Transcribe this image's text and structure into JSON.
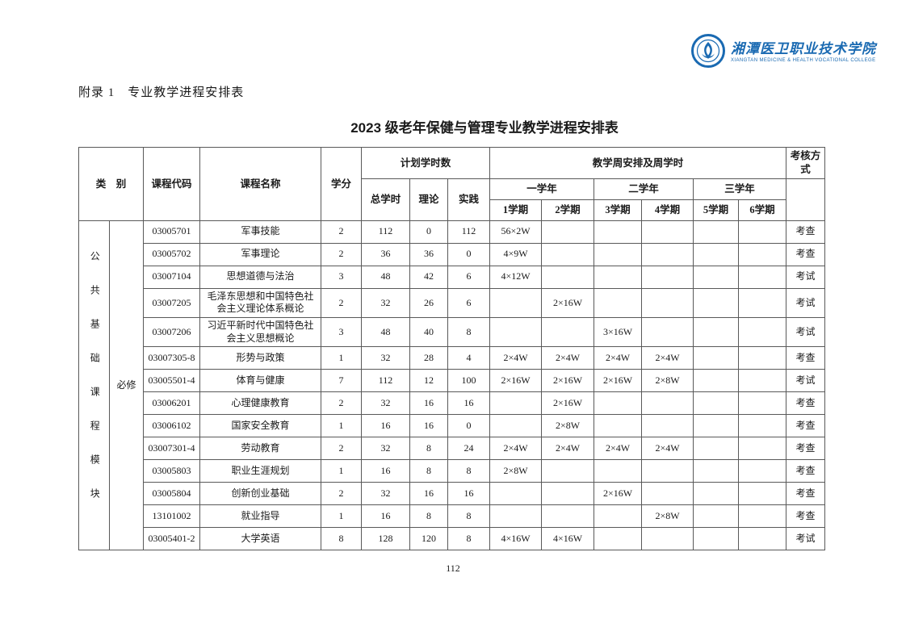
{
  "page": {
    "appendix_heading": "附录 1　专业教学进程安排表",
    "title": "2023 级老年保健与管理专业教学进程安排表",
    "page_number": "112"
  },
  "logo": {
    "college_name_cn": "湘潭医卫职业技术学院",
    "college_name_en": "XIANGTAN MEDICINE & HEALTH VOCATIONAL COLLEGE",
    "brand_color": "#1a6ab2"
  },
  "table": {
    "headers": {
      "category": "类　别",
      "course_code": "课程代码",
      "course_name": "课程名称",
      "credits": "学分",
      "planned_hours": "计划学时数",
      "total_hours": "总学时",
      "theory": "理论",
      "practice": "实践",
      "weekly_schedule": "教学周安排及周学时",
      "year1": "一学年",
      "year2": "二学年",
      "year3": "三学年",
      "semesters": [
        "1学期",
        "2学期",
        "3学期",
        "4学期",
        "5学期",
        "6学期"
      ],
      "assessment": "考核方式"
    },
    "category_group": {
      "module": "公共基础课程模块",
      "type": "必修"
    },
    "rows": [
      {
        "code": "03005701",
        "name": "军事技能",
        "credits": "2",
        "total": "112",
        "theory": "0",
        "practice": "112",
        "s1": "56×2W",
        "s2": "",
        "s3": "",
        "s4": "",
        "s5": "",
        "s6": "",
        "assess": "考查"
      },
      {
        "code": "03005702",
        "name": "军事理论",
        "credits": "2",
        "total": "36",
        "theory": "36",
        "practice": "0",
        "s1": "4×9W",
        "s2": "",
        "s3": "",
        "s4": "",
        "s5": "",
        "s6": "",
        "assess": "考查"
      },
      {
        "code": "03007104",
        "name": "思想道德与法治",
        "credits": "3",
        "total": "48",
        "theory": "42",
        "practice": "6",
        "s1": "4×12W",
        "s2": "",
        "s3": "",
        "s4": "",
        "s5": "",
        "s6": "",
        "assess": "考试"
      },
      {
        "code": "03007205",
        "name": "毛泽东思想和中国特色社会主义理论体系概论",
        "credits": "2",
        "total": "32",
        "theory": "26",
        "practice": "6",
        "s1": "",
        "s2": "2×16W",
        "s3": "",
        "s4": "",
        "s5": "",
        "s6": "",
        "assess": "考试"
      },
      {
        "code": "03007206",
        "name": "习近平新时代中国特色社会主义思想概论",
        "credits": "3",
        "total": "48",
        "theory": "40",
        "practice": "8",
        "s1": "",
        "s2": "",
        "s3": "3×16W",
        "s4": "",
        "s5": "",
        "s6": "",
        "assess": "考试"
      },
      {
        "code": "03007305-8",
        "name": "形势与政策",
        "credits": "1",
        "total": "32",
        "theory": "28",
        "practice": "4",
        "s1": "2×4W",
        "s2": "2×4W",
        "s3": "2×4W",
        "s4": "2×4W",
        "s5": "",
        "s6": "",
        "assess": "考查"
      },
      {
        "code": "03005501-4",
        "name": "体育与健康",
        "credits": "7",
        "total": "112",
        "theory": "12",
        "practice": "100",
        "s1": "2×16W",
        "s2": "2×16W",
        "s3": "2×16W",
        "s4": "2×8W",
        "s5": "",
        "s6": "",
        "assess": "考试"
      },
      {
        "code": "03006201",
        "name": "心理健康教育",
        "credits": "2",
        "total": "32",
        "theory": "16",
        "practice": "16",
        "s1": "",
        "s2": "2×16W",
        "s3": "",
        "s4": "",
        "s5": "",
        "s6": "",
        "assess": "考查"
      },
      {
        "code": "03006102",
        "name": "国家安全教育",
        "credits": "1",
        "total": "16",
        "theory": "16",
        "practice": "0",
        "s1": "",
        "s2": "2×8W",
        "s3": "",
        "s4": "",
        "s5": "",
        "s6": "",
        "assess": "考查"
      },
      {
        "code": "03007301-4",
        "name": "劳动教育",
        "credits": "2",
        "total": "32",
        "theory": "8",
        "practice": "24",
        "s1": "2×4W",
        "s2": "2×4W",
        "s3": "2×4W",
        "s4": "2×4W",
        "s5": "",
        "s6": "",
        "assess": "考查"
      },
      {
        "code": "03005803",
        "name": "职业生涯规划",
        "credits": "1",
        "total": "16",
        "theory": "8",
        "practice": "8",
        "s1": "2×8W",
        "s2": "",
        "s3": "",
        "s4": "",
        "s5": "",
        "s6": "",
        "assess": "考查"
      },
      {
        "code": "03005804",
        "name": "创新创业基础",
        "credits": "2",
        "total": "32",
        "theory": "16",
        "practice": "16",
        "s1": "",
        "s2": "",
        "s3": "2×16W",
        "s4": "",
        "s5": "",
        "s6": "",
        "assess": "考查"
      },
      {
        "code": "13101002",
        "name": "就业指导",
        "credits": "1",
        "total": "16",
        "theory": "8",
        "practice": "8",
        "s1": "",
        "s2": "",
        "s3": "",
        "s4": "2×8W",
        "s5": "",
        "s6": "",
        "assess": "考查"
      },
      {
        "code": "03005401-2",
        "name": "大学英语",
        "credits": "8",
        "total": "128",
        "theory": "120",
        "practice": "8",
        "s1": "4×16W",
        "s2": "4×16W",
        "s3": "",
        "s4": "",
        "s5": "",
        "s6": "",
        "assess": "考试"
      }
    ]
  }
}
